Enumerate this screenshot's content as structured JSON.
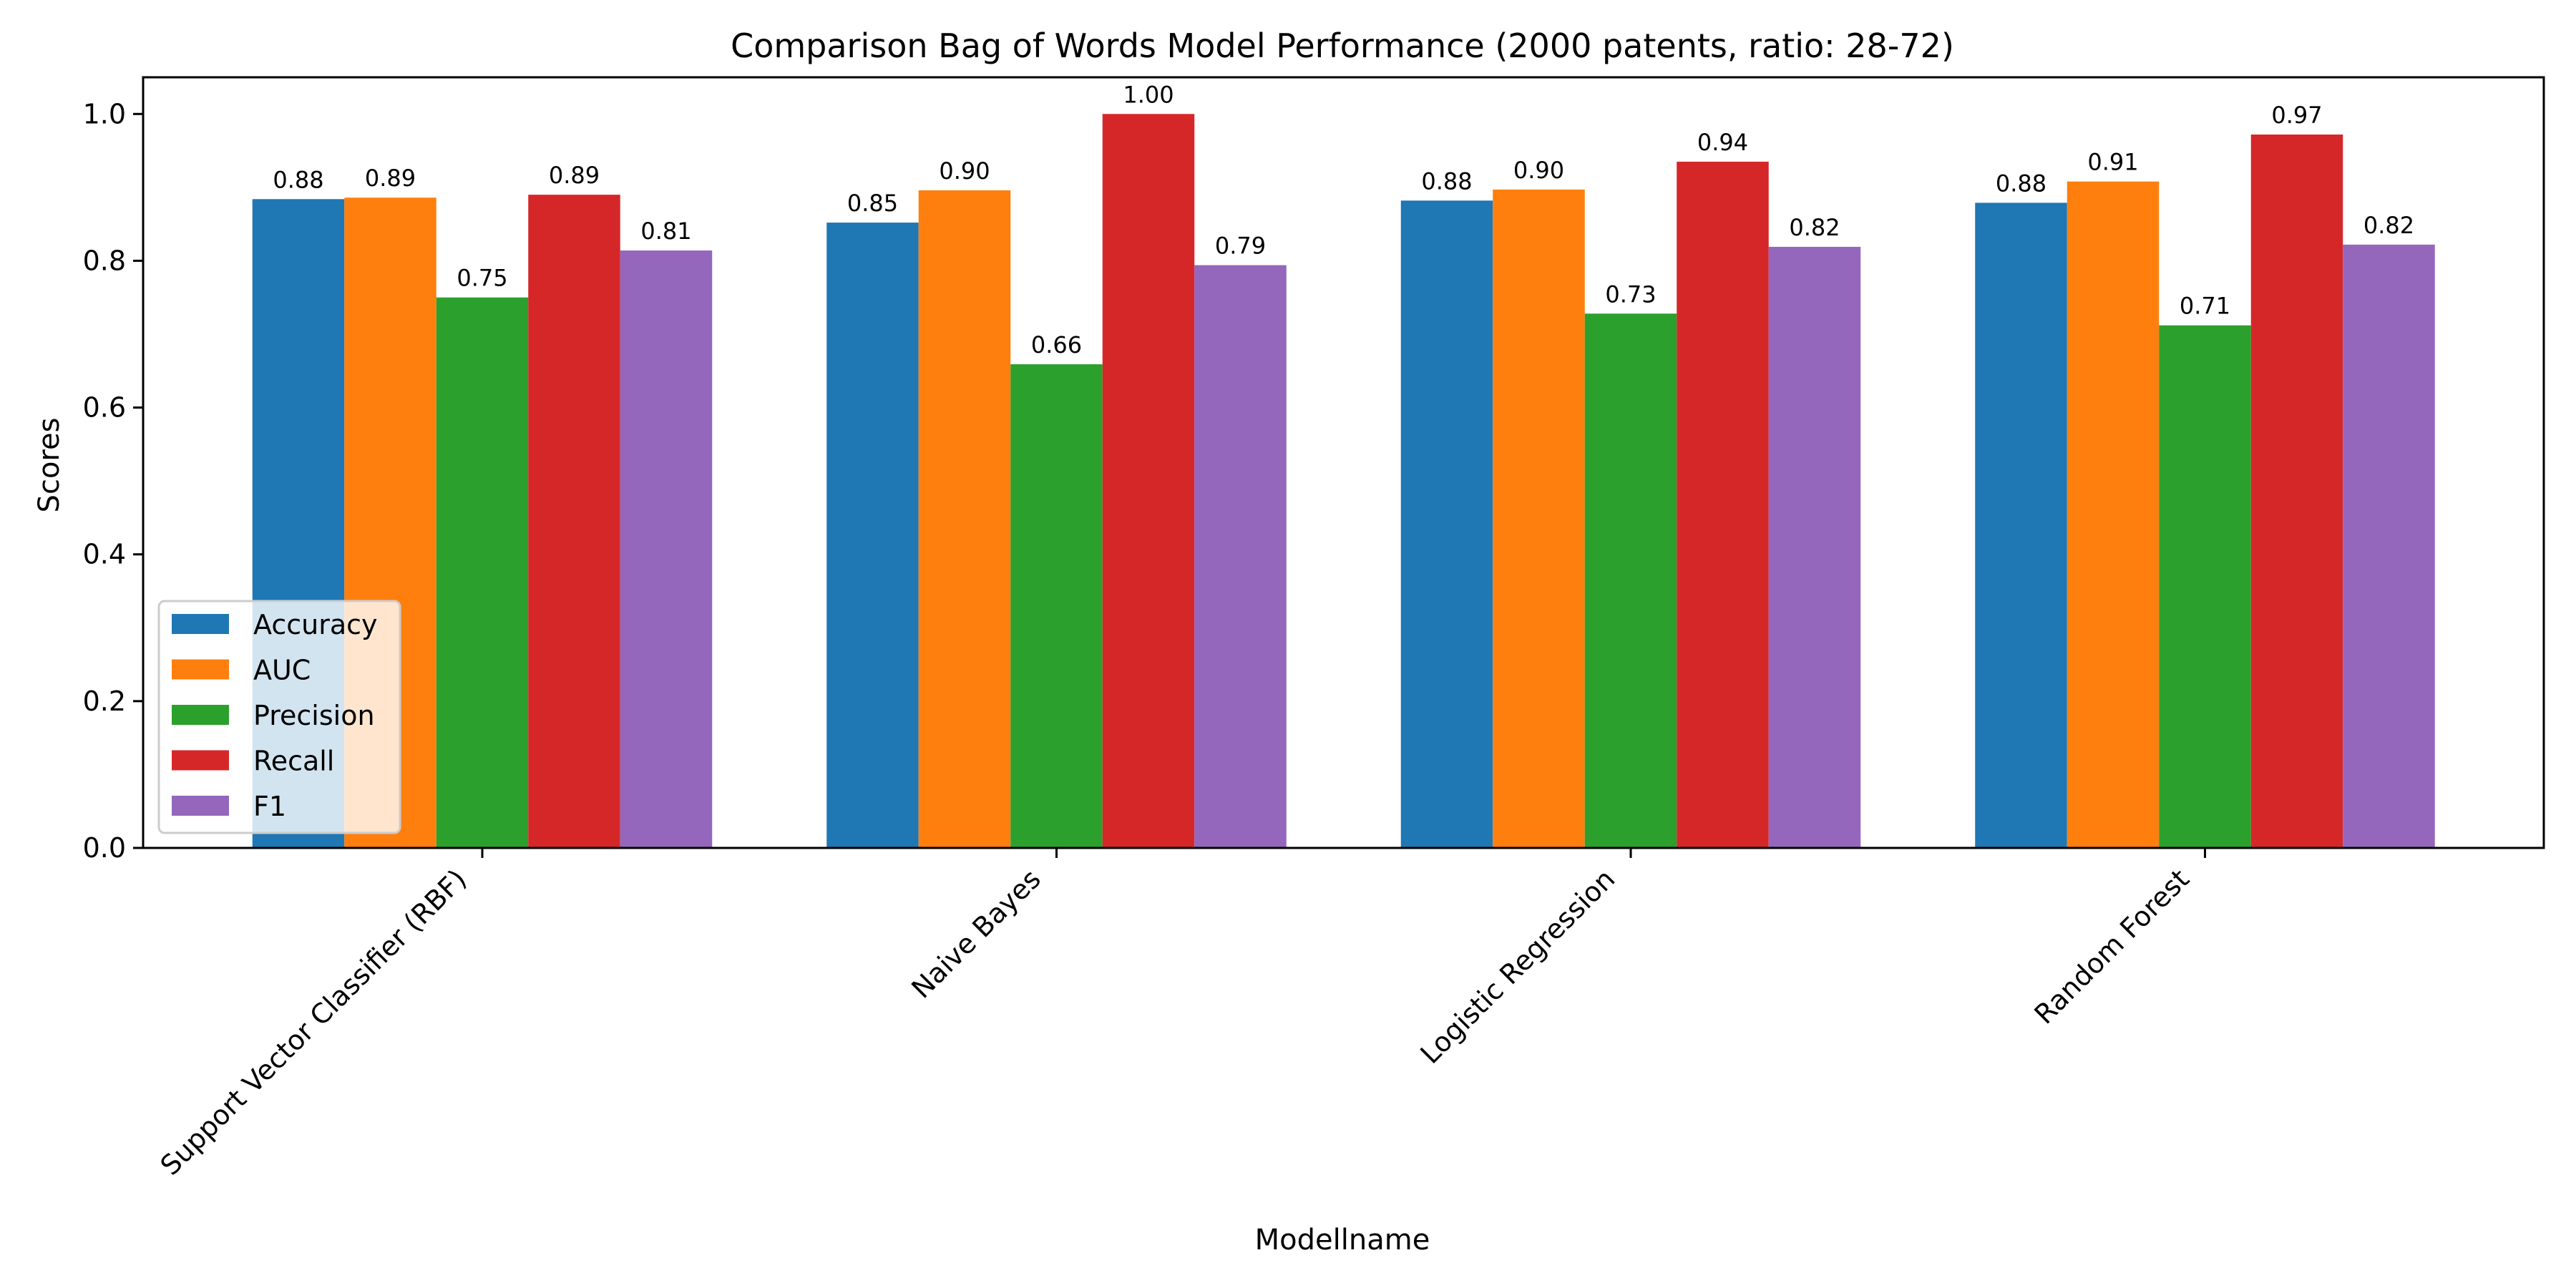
{
  "chart_data": {
    "type": "bar",
    "title": "Comparison Bag of Words Model Performance (2000 patents, ratio: 28-72)",
    "xlabel": "Modellname",
    "ylabel": "Scores",
    "ylim": [
      0,
      1.05
    ],
    "yticks": [
      "0.0",
      "0.2",
      "0.4",
      "0.6",
      "0.8",
      "1.0"
    ],
    "grid": false,
    "legend_position": "lower-left",
    "categories": [
      "Support Vector Classifier (RBF)",
      "Naive Bayes",
      "Logistic Regression",
      "Random Forest"
    ],
    "series": [
      {
        "name": "Accuracy",
        "color": "#1f77b4",
        "values": [
          0.884,
          0.852,
          0.882,
          0.879
        ],
        "labels": [
          "0.88",
          "0.85",
          "0.88",
          "0.88"
        ]
      },
      {
        "name": "AUC",
        "color": "#ff7f0e",
        "values": [
          0.886,
          0.896,
          0.897,
          0.908
        ],
        "labels": [
          "0.89",
          "0.90",
          "0.90",
          "0.91"
        ]
      },
      {
        "name": "Precision",
        "color": "#2ca02c",
        "values": [
          0.75,
          0.659,
          0.728,
          0.712
        ],
        "labels": [
          "0.75",
          "0.66",
          "0.73",
          "0.71"
        ]
      },
      {
        "name": "Recall",
        "color": "#d62728",
        "values": [
          0.89,
          1.0,
          0.935,
          0.972
        ],
        "labels": [
          "0.89",
          "1.00",
          "0.94",
          "0.97"
        ]
      },
      {
        "name": "F1",
        "color": "#9467bd",
        "values": [
          0.814,
          0.794,
          0.819,
          0.822
        ],
        "labels": [
          "0.81",
          "0.79",
          "0.82",
          "0.82"
        ]
      }
    ]
  }
}
